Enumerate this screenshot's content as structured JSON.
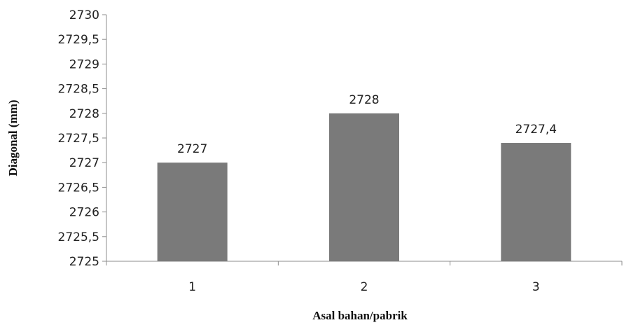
{
  "chart_data": {
    "type": "bar",
    "categories": [
      "1",
      "2",
      "3"
    ],
    "values": [
      2727,
      2728,
      2727.4
    ],
    "data_labels": [
      "2727",
      "2728",
      "2727,4"
    ],
    "title": "",
    "xlabel": "Asal bahan/pabrik",
    "ylabel": "Diagonal (mm)",
    "ylim": [
      2725,
      2730
    ],
    "yticks": [
      2725,
      2725.5,
      2726,
      2726.5,
      2727,
      2727.5,
      2728,
      2728.5,
      2729,
      2729.5,
      2730
    ],
    "ytick_labels": [
      "2725",
      "2725,5",
      "2726",
      "2726,5",
      "2727",
      "2727,5",
      "2728",
      "2728,5",
      "2729",
      "2729,5",
      "2730"
    ],
    "grid": false,
    "legend": "none",
    "bar_color": "#7a7a7a",
    "axis_color": "#8c8c8c"
  }
}
